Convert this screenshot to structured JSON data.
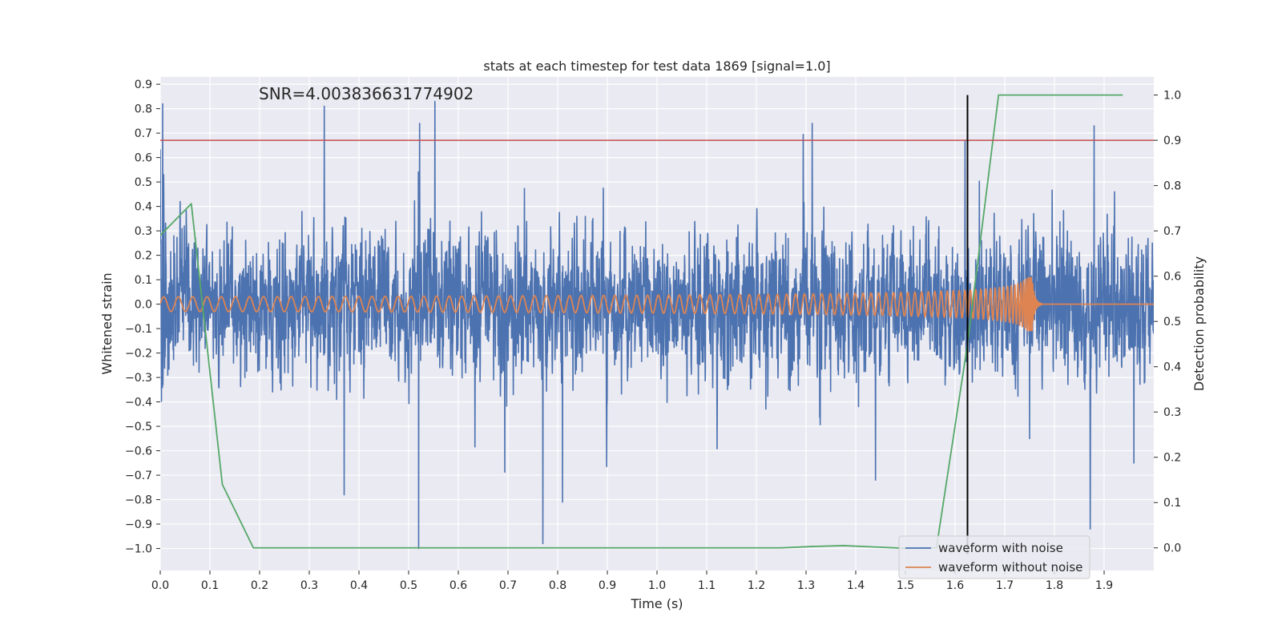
{
  "chart_data": {
    "type": "line",
    "title": "stats at each timestep for test data 1869 [signal=1.0]",
    "xlabel": "Time (s)",
    "ylabel": "Whitened strain",
    "y2label": "Detection probability",
    "annotation": "SNR=4.003836631774902",
    "xlim": [
      0.0,
      2.0
    ],
    "ylim": [
      -1.09,
      0.93
    ],
    "y2lim": [
      -0.05,
      1.04
    ],
    "x_ticks": [
      "0.0",
      "0.1",
      "0.2",
      "0.3",
      "0.4",
      "0.5",
      "0.6",
      "0.7",
      "0.8",
      "0.9",
      "1.0",
      "1.1",
      "1.2",
      "1.3",
      "1.4",
      "1.5",
      "1.6",
      "1.7",
      "1.8",
      "1.9"
    ],
    "y_ticks": [
      "0.9",
      "0.8",
      "0.7",
      "0.6",
      "0.5",
      "0.4",
      "0.3",
      "0.2",
      "0.1",
      "0.0",
      "−0.1",
      "−0.2",
      "−0.3",
      "−0.4",
      "−0.5",
      "−0.6",
      "−0.7",
      "−0.8",
      "−0.9",
      "−1.0"
    ],
    "y2_ticks": [
      "1.0",
      "0.9",
      "0.8",
      "0.7",
      "0.6",
      "0.5",
      "0.4",
      "0.3",
      "0.2",
      "0.1",
      "0.0"
    ],
    "threshold": {
      "axis": "right",
      "value": 0.9,
      "color": "#c44e52"
    },
    "event_marker": {
      "x": 1.625,
      "color": "#000000"
    },
    "series": [
      {
        "name": "waveform with noise",
        "color": "#4c72b0",
        "axis": "left",
        "kind": "noise",
        "x_range": [
          0.0,
          2.0
        ],
        "samples": 4096,
        "std": 0.24,
        "seed": 1869,
        "extremes": [
          {
            "x": 0.005,
            "y": 0.82
          },
          {
            "x": 0.33,
            "y": 0.81
          },
          {
            "x": 0.37,
            "y": -0.78
          },
          {
            "x": 0.52,
            "y": -1.0
          },
          {
            "x": 0.553,
            "y": 0.83
          },
          {
            "x": 0.77,
            "y": -0.98
          },
          {
            "x": 0.81,
            "y": -0.81
          },
          {
            "x": 1.44,
            "y": -0.72
          },
          {
            "x": 1.62,
            "y": 0.67
          },
          {
            "x": 1.75,
            "y": -0.55
          },
          {
            "x": 1.88,
            "y": 0.73
          },
          {
            "x": 1.96,
            "y": -0.65
          }
        ]
      },
      {
        "name": "waveform without noise",
        "color": "#dd8452",
        "axis": "left",
        "kind": "chirp",
        "x_range": [
          0.0,
          2.0
        ],
        "t_merger": 1.755,
        "f_start": 34,
        "amp_start": 0.03,
        "amp_peak": 0.11,
        "ringdown_end": 1.775
      },
      {
        "name": "detection probability",
        "color": "#55a868",
        "axis": "right",
        "x": [
          0.0,
          0.0625,
          0.125,
          0.1875,
          0.25,
          0.3125,
          0.375,
          0.4375,
          0.5,
          0.5625,
          0.625,
          0.6875,
          0.75,
          0.8125,
          0.875,
          0.9375,
          1.0,
          1.0625,
          1.125,
          1.1875,
          1.25,
          1.3125,
          1.375,
          1.4375,
          1.5,
          1.5625,
          1.625,
          1.6875,
          1.75,
          1.8125,
          1.875,
          1.9375
        ],
        "y": [
          0.69,
          0.76,
          0.14,
          0.0,
          0.0,
          0.0,
          0.0,
          0.0,
          0.0,
          0.0,
          0.0,
          0.0,
          0.0,
          0.0,
          0.0,
          0.0,
          0.0,
          0.0,
          0.0,
          0.0,
          0.0,
          0.003,
          0.005,
          0.002,
          -0.001,
          0.0,
          0.45,
          1.0,
          1.0,
          1.0,
          1.0,
          1.0
        ]
      }
    ],
    "legend": {
      "placement": "lower-right",
      "entries": [
        {
          "label": "waveform with noise",
          "color": "#4c72b0"
        },
        {
          "label": "waveform without noise",
          "color": "#dd8452"
        }
      ]
    },
    "grid": true,
    "background": "#eaeaf2"
  }
}
